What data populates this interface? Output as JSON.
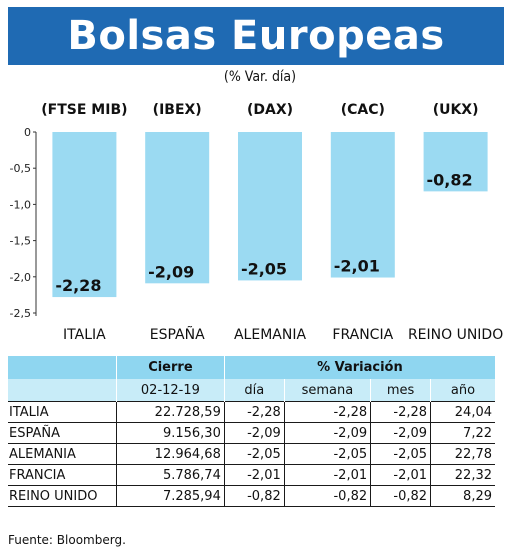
{
  "header": {
    "title": "Bolsas Europeas",
    "subtitle": "(% Var. día)"
  },
  "chart_data": {
    "type": "bar",
    "title": "Bolsas Europeas",
    "subtitle": "(% Var. día)",
    "categories": [
      "ITALIA",
      "ESPAÑA",
      "ALEMANIA",
      "FRANCIA",
      "REINO UNIDO"
    ],
    "index_labels": [
      "(FTSE MIB)",
      "(IBEX)",
      "(DAX)",
      "(CAC)",
      "(UKX)"
    ],
    "values": [
      -2.28,
      -2.09,
      -2.05,
      -2.01,
      -0.82
    ],
    "value_labels": [
      "-2,28",
      "-2,09",
      "-2,05",
      "-2,01",
      "-0,82"
    ],
    "ylim": [
      -2.5,
      0
    ],
    "yticks": [
      0,
      -0.5,
      -1.0,
      -1.5,
      -2.0,
      -2.5
    ],
    "ytick_labels": [
      "0",
      "-0,5",
      "-1,0",
      "-1,5",
      "-2,0",
      "-2,5"
    ],
    "bar_color": "#9bdaf2",
    "grid": false
  },
  "table": {
    "header_cierre": "Cierre",
    "header_variacion": "% Variación",
    "date": "02-12-19",
    "columns": [
      "día",
      "semana",
      "mes",
      "año"
    ],
    "rows": [
      {
        "name": "ITALIA",
        "cierre": "22.728,59",
        "dia": "-2,28",
        "semana": "-2,28",
        "mes": "-2,28",
        "anio": "24,04"
      },
      {
        "name": "ESPAÑA",
        "cierre": "9.156,30",
        "dia": "-2,09",
        "semana": "-2,09",
        "mes": "-2,09",
        "anio": "7,22"
      },
      {
        "name": "ALEMANIA",
        "cierre": "12.964,68",
        "dia": "-2,05",
        "semana": "-2,05",
        "mes": "-2,05",
        "anio": "22,78"
      },
      {
        "name": "FRANCIA",
        "cierre": "5.786,74",
        "dia": "-2,01",
        "semana": "-2,01",
        "mes": "-2,01",
        "anio": "22,32"
      },
      {
        "name": "REINO UNIDO",
        "cierre": "7.285,94",
        "dia": "-0,82",
        "semana": "-0,82",
        "mes": "-0,82",
        "anio": "8,29"
      }
    ]
  },
  "source": "Fuente: Bloomberg."
}
